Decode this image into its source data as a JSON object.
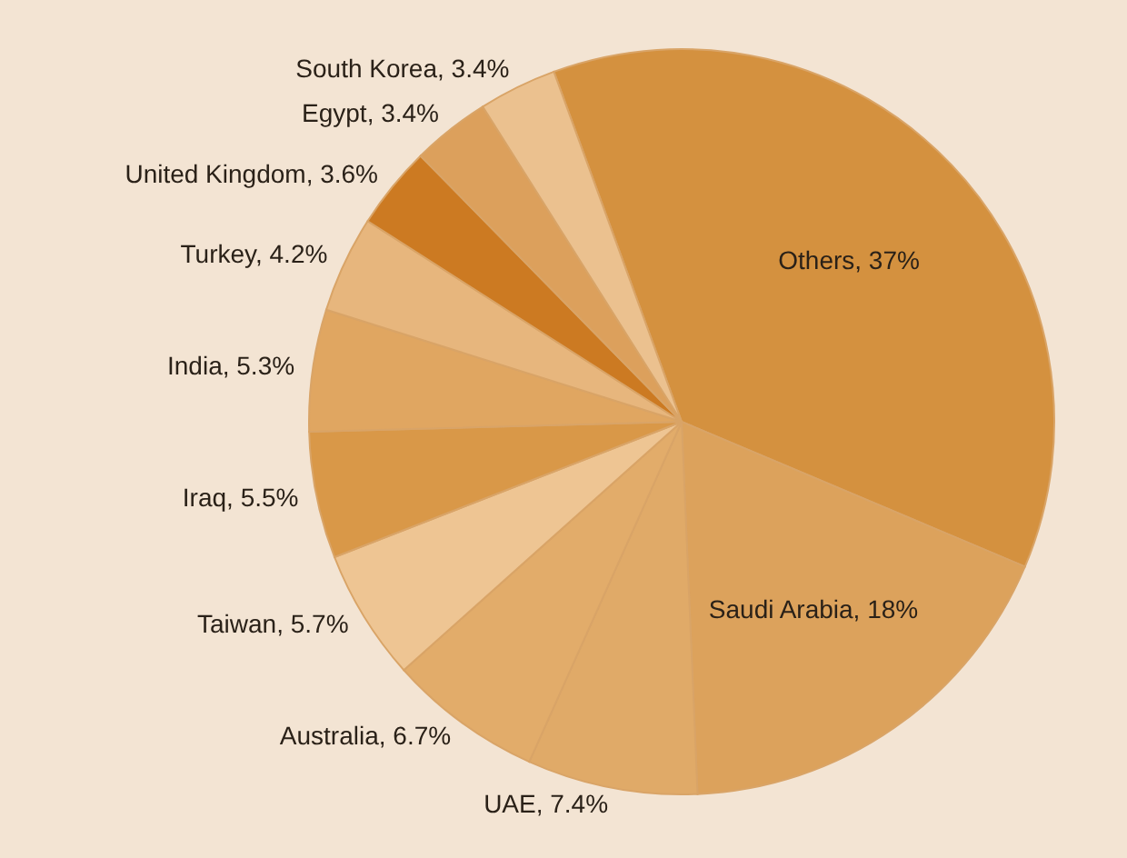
{
  "chart_data": {
    "type": "pie",
    "categories": [
      "Others",
      "Saudi Arabia",
      "UAE",
      "Australia",
      "Taiwan",
      "Iraq",
      "India",
      "Turkey",
      "United Kingdom",
      "Egypt",
      "South Korea"
    ],
    "values": [
      37,
      18,
      7.4,
      6.7,
      5.7,
      5.5,
      5.3,
      4.2,
      3.6,
      3.4,
      3.4
    ],
    "value_labels": [
      "37%",
      "18%",
      "7.4%",
      "6.7%",
      "5.7%",
      "5.5%",
      "5.3%",
      "4.2%",
      "3.6%",
      "3.4%",
      "3.4%"
    ],
    "colors": [
      "#d4913f",
      "#dca25c",
      "#e0aa68",
      "#e2ac6a",
      "#eec593",
      "#d99848",
      "#e0a661",
      "#e7b67d",
      "#cc7a22",
      "#dca05c",
      "#ebc18f"
    ],
    "legend": false
  }
}
